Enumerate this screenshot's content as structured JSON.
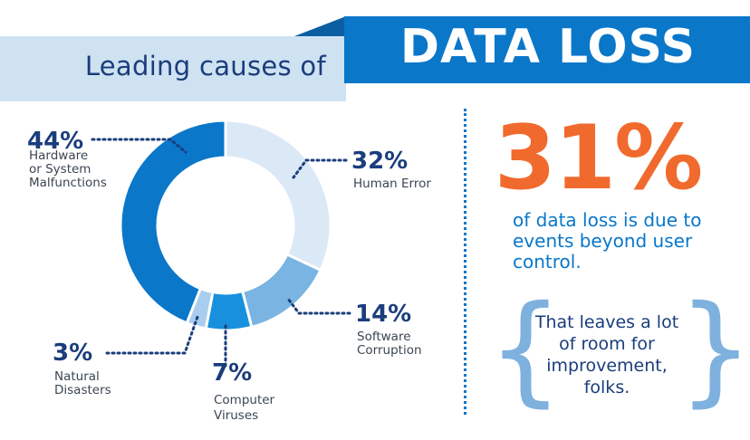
{
  "header": {
    "subtitle": "Leading causes of",
    "title": "DATA LOSS"
  },
  "colors": {
    "dark_blue": "#0a77c9",
    "mid_blue": "#1890de",
    "light_blue": "#dbe8f6",
    "soft_blue": "#79b4e2",
    "navy": "#1a3d7c",
    "orange": "#f16a2d"
  },
  "chart_data": {
    "type": "pie",
    "donut": true,
    "categories": [
      "Hardware or System Malfunctions",
      "Human Error",
      "Software Corruption",
      "Computer Viruses",
      "Natural Disasters"
    ],
    "values": [
      44,
      32,
      14,
      7,
      3
    ],
    "unit": "%",
    "labels": [
      {
        "pct": "44%",
        "lines": [
          "Hardware",
          "or System",
          "Malfunctions"
        ]
      },
      {
        "pct": "32%",
        "lines": [
          "Human Error"
        ]
      },
      {
        "pct": "14%",
        "lines": [
          "Software",
          "Corruption"
        ]
      },
      {
        "pct": "7%",
        "lines": [
          "Computer",
          "Viruses"
        ]
      },
      {
        "pct": "3%",
        "lines": [
          "Natural",
          "Disasters"
        ]
      }
    ],
    "slice_colors": [
      "#0a77c9",
      "#dbe8f6",
      "#79b4e2",
      "#1890de",
      "#a9cdee"
    ]
  },
  "callout": {
    "stat": "31%",
    "description": "of data loss is due to events beyond user control.",
    "note": "That leaves a lot of room for improvement, folks."
  }
}
